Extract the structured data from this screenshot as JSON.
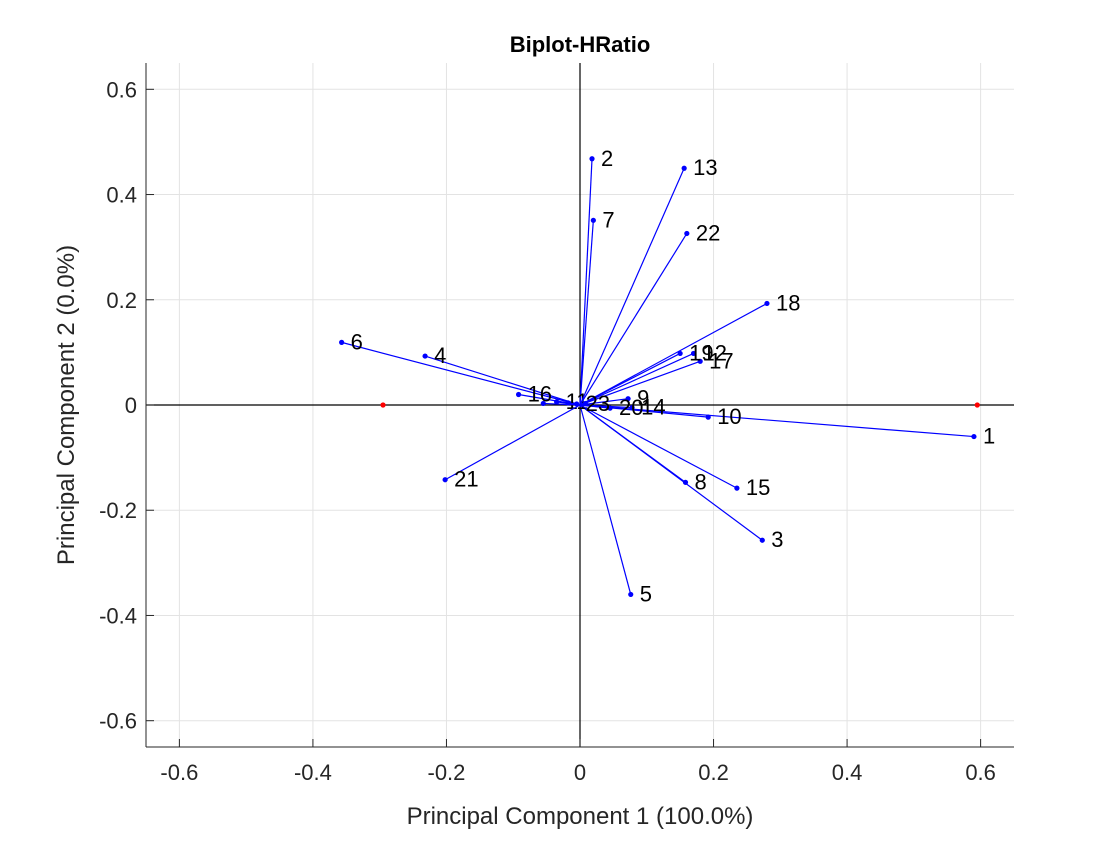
{
  "chart_data": {
    "type": "scatter",
    "subtype": "biplot",
    "title": "Biplot-HRatio",
    "xlabel": "Principal Component 1 (100.0%)",
    "ylabel": "Principal Component 2 (0.0%)",
    "xlim": [
      -0.65,
      0.65
    ],
    "ylim": [
      -0.65,
      0.65
    ],
    "xticks": [
      -0.6,
      -0.4,
      -0.2,
      0,
      0.2,
      0.4,
      0.6
    ],
    "yticks": [
      -0.6,
      -0.4,
      -0.2,
      0,
      0.2,
      0.4,
      0.6
    ],
    "xtick_labels": [
      "-0.6",
      "-0.4",
      "-0.2",
      "0",
      "0.2",
      "0.4",
      "0.6"
    ],
    "ytick_labels": [
      "-0.6",
      "-0.4",
      "-0.2",
      "0",
      "0.2",
      "0.4",
      "0.6"
    ],
    "grid": true,
    "vector_color": "#0000ff",
    "score_color": "#ff0000",
    "vectors": [
      {
        "label": "1",
        "x": 0.59,
        "y": -0.06
      },
      {
        "label": "2",
        "x": 0.018,
        "y": 0.468
      },
      {
        "label": "3",
        "x": 0.273,
        "y": -0.257
      },
      {
        "label": "4",
        "x": -0.232,
        "y": 0.093
      },
      {
        "label": "5",
        "x": 0.076,
        "y": -0.36
      },
      {
        "label": "6",
        "x": -0.357,
        "y": 0.119
      },
      {
        "label": "7",
        "x": 0.02,
        "y": 0.351
      },
      {
        "label": "8",
        "x": 0.158,
        "y": -0.147
      },
      {
        "label": "9",
        "x": 0.072,
        "y": 0.012
      },
      {
        "label": "10",
        "x": 0.192,
        "y": -0.023
      },
      {
        "label": "11",
        "x": -0.035,
        "y": 0.006
      },
      {
        "label": "12",
        "x": 0.17,
        "y": 0.098
      },
      {
        "label": "13",
        "x": 0.156,
        "y": 0.45
      },
      {
        "label": "14",
        "x": 0.078,
        "y": -0.005
      },
      {
        "label": "15",
        "x": 0.235,
        "y": -0.158
      },
      {
        "label": "16",
        "x": -0.092,
        "y": 0.02
      },
      {
        "label": "17",
        "x": 0.18,
        "y": 0.083
      },
      {
        "label": "18",
        "x": 0.28,
        "y": 0.193
      },
      {
        "label": "19",
        "x": 0.15,
        "y": 0.098
      },
      {
        "label": "20",
        "x": 0.045,
        "y": -0.006
      },
      {
        "label": "21",
        "x": -0.202,
        "y": -0.142
      },
      {
        "label": "22",
        "x": 0.16,
        "y": 0.326
      },
      {
        "label": "23",
        "x": -0.005,
        "y": 0.002
      },
      {
        "label": "",
        "x": -0.055,
        "y": 0.003
      },
      {
        "label": "",
        "x": -0.018,
        "y": 0.004
      },
      {
        "label": "",
        "x": 0.008,
        "y": 0.003
      }
    ],
    "scores": [
      {
        "x": -0.295,
        "y": 0.0
      },
      {
        "x": 0.595,
        "y": 0.0
      }
    ]
  }
}
